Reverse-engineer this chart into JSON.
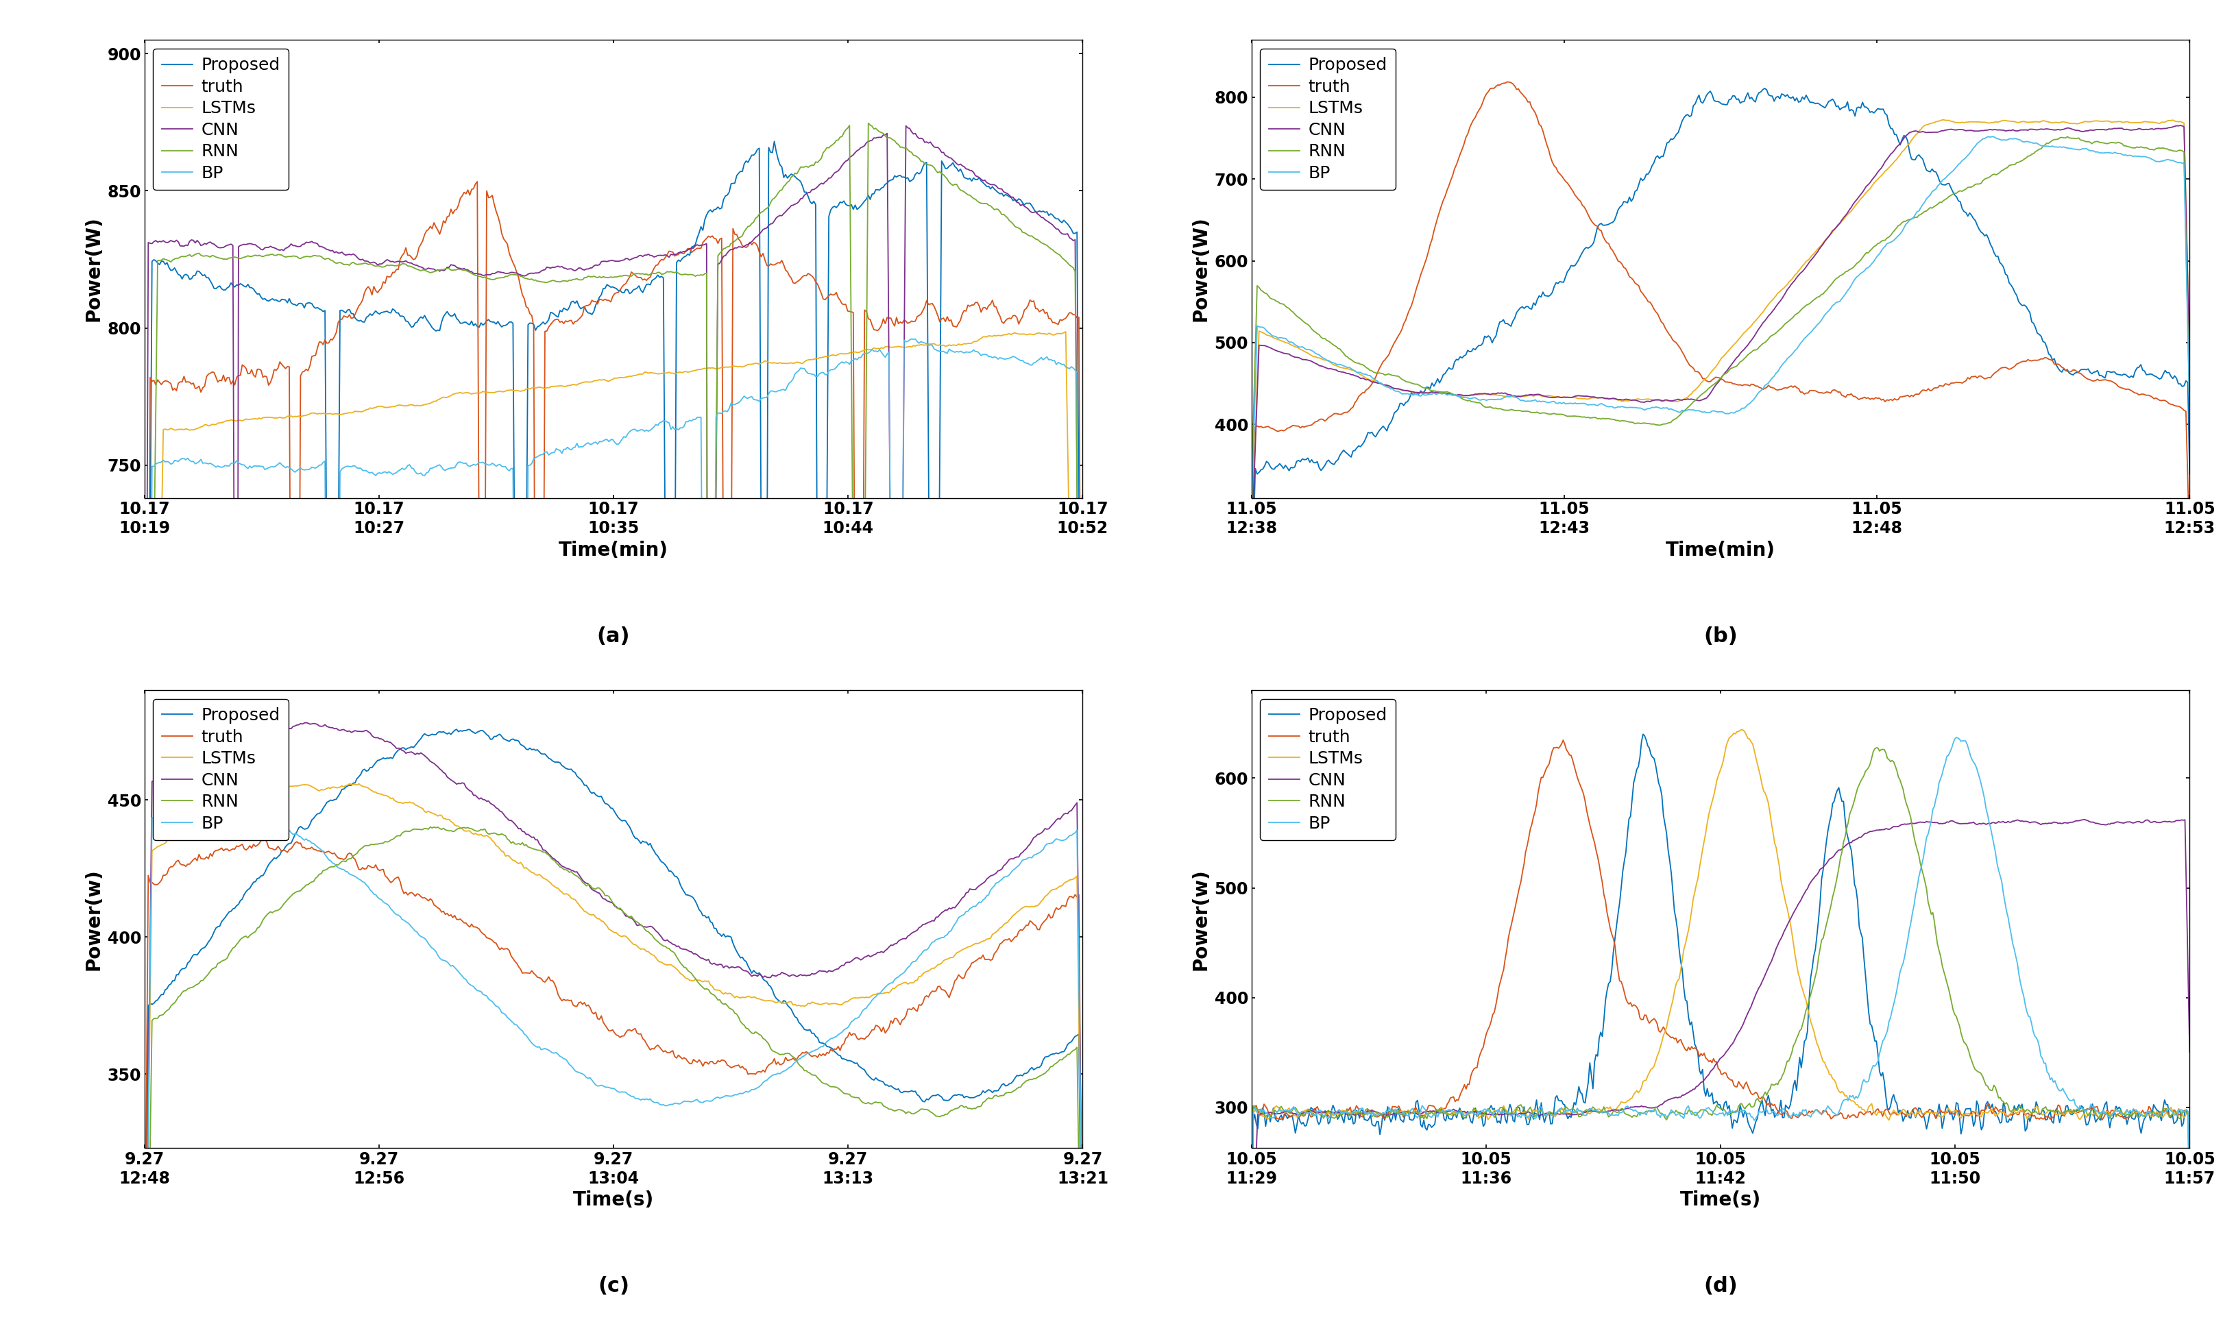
{
  "colors": {
    "Proposed": "#0072BD",
    "truth": "#D95319",
    "LSTMs": "#EDB120",
    "CNN": "#7E2F8E",
    "RNN": "#77AC30",
    "BP": "#4DBEEE"
  },
  "legend_labels": [
    "Proposed",
    "truth",
    "LSTMs",
    "CNN",
    "RNN",
    "BP"
  ],
  "subplot_labels": [
    "(a)",
    "(b)",
    "(c)",
    "(d)"
  ],
  "a": {
    "ylabel": "Power(W)",
    "xlabel": "Time(min)",
    "ylim": [
      738,
      905
    ],
    "yticks": [
      750,
      800,
      850,
      900
    ],
    "xtick_labels": [
      "10.17 10:19",
      "10.17 10:27",
      "10.17 10:35",
      "10.17 10:44",
      "10.17 10:52"
    ],
    "n_xticks": 5
  },
  "b": {
    "ylabel": "Power(W)",
    "xlabel": "Time(min)",
    "ylim": [
      310,
      870
    ],
    "yticks": [
      400,
      500,
      600,
      700,
      800
    ],
    "xtick_labels": [
      "11.05 12:38",
      "11.05 12:43",
      "11.05 12:48",
      "11.05 12:53"
    ],
    "n_xticks": 4
  },
  "c": {
    "ylabel": "Power(w)",
    "xlabel": "Time(s)",
    "ylim": [
      323,
      490
    ],
    "yticks": [
      350,
      400,
      450
    ],
    "xtick_labels": [
      "9.27 12:48",
      "9.27 12:56",
      "9.27 13:04",
      "9.27 13:13",
      "9.27 13:21"
    ],
    "n_xticks": 5
  },
  "d": {
    "ylabel": "Power(w)",
    "xlabel": "Time(s)",
    "ylim": [
      263,
      680
    ],
    "yticks": [
      300,
      400,
      500,
      600
    ],
    "xtick_labels": [
      "10.05 11:29",
      "10.05 11:36",
      "10.05 11:42",
      "10.05 11:50",
      "10.05 11:57"
    ],
    "n_xticks": 5
  },
  "linewidth": 1.3,
  "legend_fontsize": 18,
  "tick_fontsize": 17,
  "label_fontsize": 20,
  "sublabel_fontsize": 22
}
